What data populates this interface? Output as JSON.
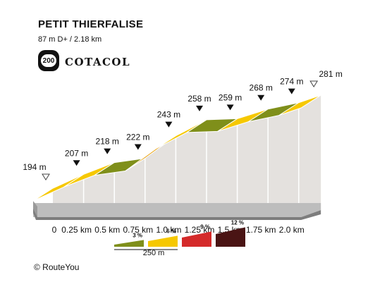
{
  "header": {
    "title": "PETIT THIERFALISE",
    "subtitle": "87 m D+ / 2.18 km",
    "badge_number": "200",
    "brand": "COTACOL"
  },
  "credit": "© RouteYou",
  "chart_data": {
    "type": "area",
    "x_unit": "km",
    "y_unit": "m",
    "x_ticks": [
      0,
      0.25,
      0.5,
      0.75,
      1.0,
      1.25,
      1.5,
      1.75,
      2.0
    ],
    "x_tick_labels": [
      "0",
      "0.25 km",
      "0.5 km",
      "0.75 km",
      "1.0 km",
      "1.25 km",
      "1.5 km",
      "1.75 km",
      "2.0 km"
    ],
    "elevation_points": [
      {
        "x": 0,
        "y": 194,
        "label": "194 m",
        "marker": "start"
      },
      {
        "x": 0.25,
        "y": 207,
        "label": "207 m",
        "marker": "point"
      },
      {
        "x": 0.5,
        "y": 218,
        "label": "218 m",
        "marker": "point"
      },
      {
        "x": 0.75,
        "y": 222,
        "label": "222 m",
        "marker": "point"
      },
      {
        "x": 1.0,
        "y": 243,
        "label": "243 m",
        "marker": "point"
      },
      {
        "x": 1.25,
        "y": 258,
        "label": "258 m",
        "marker": "point"
      },
      {
        "x": 1.5,
        "y": 259,
        "label": "259 m",
        "marker": "point"
      },
      {
        "x": 1.75,
        "y": 268,
        "label": "268 m",
        "marker": "point"
      },
      {
        "x": 2.0,
        "y": 274,
        "label": "274 m",
        "marker": "point"
      },
      {
        "x": 2.18,
        "y": 281,
        "label": "281 m",
        "marker": "end"
      }
    ],
    "segments": [
      {
        "from": 0,
        "to": 0.25,
        "color": "#f6c800"
      },
      {
        "from": 0.25,
        "to": 0.5,
        "color": "#f6c800"
      },
      {
        "from": 0.5,
        "to": 0.75,
        "color": "#7f8f1a"
      },
      {
        "from": 0.75,
        "to": 1.0,
        "color": "#e9a10c"
      },
      {
        "from": 1.0,
        "to": 1.25,
        "color": "#f6c800"
      },
      {
        "from": 1.25,
        "to": 1.5,
        "color": "#7f8f1a"
      },
      {
        "from": 1.5,
        "to": 1.75,
        "color": "#f6c800"
      },
      {
        "from": 1.75,
        "to": 2.0,
        "color": "#7f8f1a"
      },
      {
        "from": 2.0,
        "to": 2.18,
        "color": "#f6c800"
      }
    ],
    "legend": {
      "items": [
        {
          "label": "3 %",
          "color": "#7f8f1a"
        },
        {
          "label": "6 %",
          "color": "#f6c800"
        },
        {
          "label": "9 %",
          "color": "#d42a2a"
        },
        {
          "label": "12 %",
          "color": "#4a1414"
        }
      ],
      "scale_label": "250 m"
    },
    "colors": {
      "side_face": "#e4e1de",
      "base": "#7d7d7d",
      "divider": "#ffffff"
    }
  }
}
